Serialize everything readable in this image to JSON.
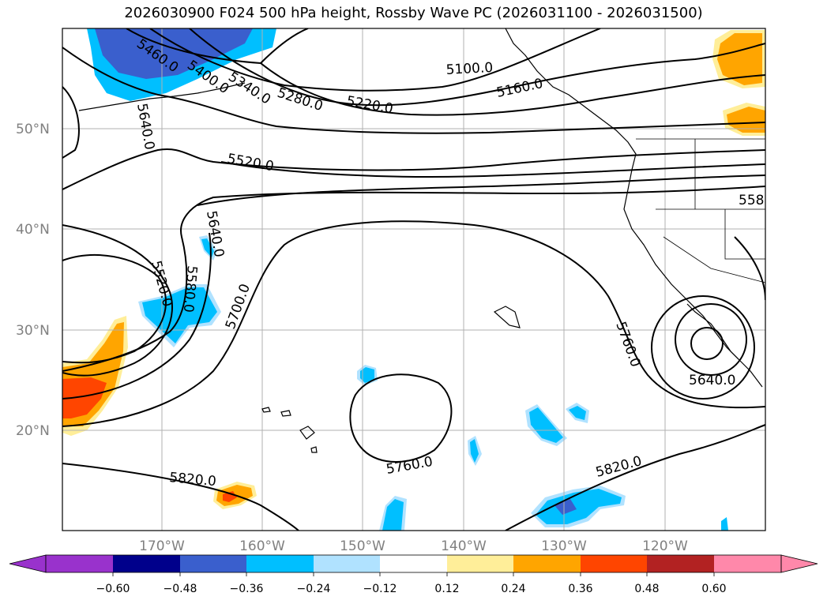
{
  "title": "2026030900 F024 500 hPa height, Rossby Wave PC (2026031100 - 2026031500)",
  "map": {
    "lat_labels": [
      "50°N",
      "40°N",
      "30°N",
      "20°N"
    ],
    "lon_labels": [
      "170°W",
      "160°W",
      "150°W",
      "140°W",
      "130°W",
      "120°W"
    ],
    "contour_labels": [
      {
        "text": "5460.0"
      },
      {
        "text": "5400.0"
      },
      {
        "text": "5340.0"
      },
      {
        "text": "5280.0"
      },
      {
        "text": "5220.0"
      },
      {
        "text": "5160.0"
      },
      {
        "text": "5100.0"
      },
      {
        "text": "5640.0"
      },
      {
        "text": "5520.0"
      },
      {
        "text": "5640.0"
      },
      {
        "text": "5520.0"
      },
      {
        "text": "5580.0"
      },
      {
        "text": "5700.0"
      },
      {
        "text": "5760.0"
      },
      {
        "text": "5640.0"
      },
      {
        "text": "5760.0"
      },
      {
        "text": "5820.0"
      },
      {
        "text": "5820.0"
      },
      {
        "text": "558"
      }
    ],
    "colors": {
      "positive_light": "#ffee99",
      "positive_mid": "#ffa500",
      "positive_strong": "#ff4500",
      "negative_light": "#add8f8",
      "negative_mid": "#00bfff",
      "negative_strong": "#4169e1"
    }
  },
  "colorbar": {
    "ticks": [
      "−0.60",
      "−0.48",
      "−0.36",
      "−0.24",
      "−0.12",
      "0.12",
      "0.24",
      "0.36",
      "0.48",
      "0.60"
    ],
    "colors": [
      "#9932cc",
      "#00008b",
      "#3a5fcd",
      "#00bfff",
      "#b0e2ff",
      "#ffffff",
      "#ffee99",
      "#ffa500",
      "#ff4500",
      "#b22222",
      "#ff88aa"
    ]
  }
}
